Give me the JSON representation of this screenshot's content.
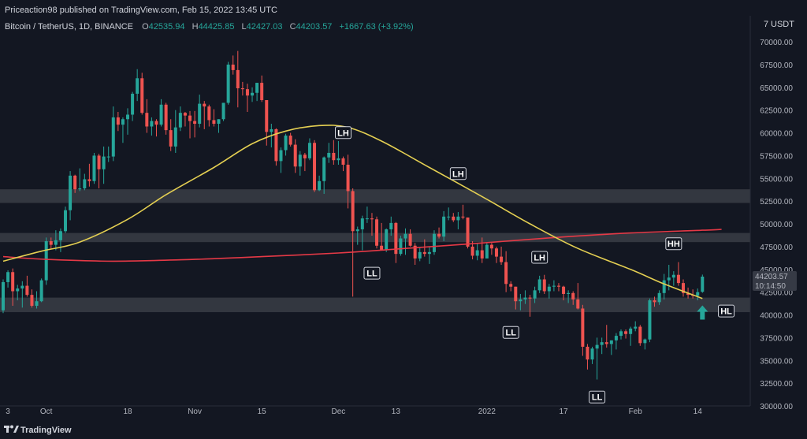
{
  "publisher": {
    "text": "Priceaction98 published on TradingView.com, Feb 15, 2022 13:45 UTC"
  },
  "symbol": {
    "name": "Bitcoin / TetherUS, 1D, BINANCE",
    "ohlc": [
      {
        "k": "O",
        "v": "42535.94"
      },
      {
        "k": "H",
        "v": "44425.85"
      },
      {
        "k": "L",
        "v": "42427.03"
      },
      {
        "k": "C",
        "v": "44203.57"
      }
    ],
    "change": "+1667.63 (+3.92%)"
  },
  "currency_label": "USDT",
  "currency_menu_glyph": "7",
  "footer": {
    "brand": "TradingView",
    "logo_icon": "tradingview-logo-icon"
  },
  "last_price": {
    "value": "44203.57",
    "countdown": "10:14:50",
    "color": "#26a69a"
  },
  "colors": {
    "background": "#131722",
    "up": "#26a69a",
    "down": "#ef5350",
    "ma_fast": "#e4cf52",
    "ma_slow": "#e53946",
    "zone": "#3a3d45",
    "arrow": "#26a69a"
  },
  "chart_data": {
    "type": "candlestick",
    "ylim": [
      30000,
      72000
    ],
    "y_ticks": [
      "30000.00",
      "32500.00",
      "35000.00",
      "37500.00",
      "40000.00",
      "42500.00",
      "45000.00",
      "47500.00",
      "50000.00",
      "52500.00",
      "55000.00",
      "57500.00",
      "60000.00",
      "62500.00",
      "65000.00",
      "67500.00",
      "70000.00"
    ],
    "x_ticks": [
      {
        "label": "3",
        "date": "2021-09-23"
      },
      {
        "label": "Oct",
        "date": "2021-10-01"
      },
      {
        "label": "18",
        "date": "2021-10-18"
      },
      {
        "label": "Nov",
        "date": "2021-11-01"
      },
      {
        "label": "15",
        "date": "2021-11-15"
      },
      {
        "label": "Dec",
        "date": "2021-12-01"
      },
      {
        "label": "13",
        "date": "2021-12-13"
      },
      {
        "label": "2022",
        "date": "2022-01-01"
      },
      {
        "label": "17",
        "date": "2022-01-17"
      },
      {
        "label": "Feb",
        "date": "2022-02-01"
      },
      {
        "label": "14",
        "date": "2022-02-14"
      }
    ],
    "x_range": {
      "start": "2021-09-22",
      "end": "2022-02-24"
    },
    "candles": [
      [
        "2021-09-22",
        40500,
        43900,
        40200,
        43600
      ],
      [
        "2021-09-23",
        43600,
        44900,
        43000,
        44700
      ],
      [
        "2021-09-24",
        44700,
        45100,
        41000,
        42600
      ],
      [
        "2021-09-25",
        42600,
        43300,
        41600,
        42900
      ],
      [
        "2021-09-26",
        42900,
        43700,
        40800,
        43200
      ],
      [
        "2021-09-27",
        43200,
        44300,
        42000,
        42200
      ],
      [
        "2021-09-28",
        42200,
        42800,
        40800,
        41000
      ],
      [
        "2021-09-29",
        41000,
        42600,
        40700,
        41500
      ],
      [
        "2021-09-30",
        41500,
        44000,
        41400,
        43800
      ],
      [
        "2021-10-01",
        43800,
        48500,
        43300,
        48100
      ],
      [
        "2021-10-02",
        48100,
        48500,
        47200,
        47700
      ],
      [
        "2021-10-03",
        47700,
        49300,
        47100,
        48200
      ],
      [
        "2021-10-04",
        48200,
        49500,
        46900,
        49200
      ],
      [
        "2021-10-05",
        49200,
        51900,
        49000,
        51500
      ],
      [
        "2021-10-06",
        51500,
        55800,
        50400,
        55300
      ],
      [
        "2021-10-07",
        55300,
        55400,
        53400,
        53800
      ],
      [
        "2021-10-08",
        53800,
        56100,
        53600,
        53900
      ],
      [
        "2021-10-09",
        53900,
        55500,
        53700,
        54900
      ],
      [
        "2021-10-10",
        54900,
        56600,
        54100,
        54700
      ],
      [
        "2021-10-11",
        54700,
        57800,
        54400,
        57500
      ],
      [
        "2021-10-12",
        57500,
        57700,
        53900,
        56000
      ],
      [
        "2021-10-13",
        56000,
        58500,
        54400,
        57400
      ],
      [
        "2021-10-14",
        57400,
        58500,
        56800,
        57400
      ],
      [
        "2021-10-15",
        57400,
        62900,
        56900,
        61700
      ],
      [
        "2021-10-16",
        61700,
        62300,
        60200,
        60900
      ],
      [
        "2021-10-17",
        60900,
        61700,
        58900,
        61500
      ],
      [
        "2021-10-18",
        61500,
        62700,
        59800,
        62000
      ],
      [
        "2021-10-19",
        62000,
        64500,
        61300,
        64300
      ],
      [
        "2021-10-20",
        64300,
        67000,
        63500,
        66000
      ],
      [
        "2021-10-21",
        66000,
        66600,
        62000,
        62200
      ],
      [
        "2021-10-22",
        62200,
        63700,
        60000,
        60700
      ],
      [
        "2021-10-23",
        60700,
        61700,
        59700,
        61300
      ],
      [
        "2021-10-24",
        61300,
        61500,
        59600,
        60900
      ],
      [
        "2021-10-25",
        60900,
        63700,
        60700,
        63100
      ],
      [
        "2021-10-26",
        63100,
        63300,
        59800,
        60300
      ],
      [
        "2021-10-27",
        60300,
        61500,
        58000,
        58500
      ],
      [
        "2021-10-28",
        58500,
        62500,
        57800,
        60600
      ],
      [
        "2021-10-29",
        60600,
        62900,
        60200,
        62200
      ],
      [
        "2021-10-30",
        62200,
        62300,
        60700,
        61900
      ],
      [
        "2021-10-31",
        61900,
        62400,
        59400,
        61300
      ],
      [
        "2021-11-01",
        61300,
        62400,
        59500,
        61000
      ],
      [
        "2021-11-02",
        61000,
        64200,
        60600,
        63200
      ],
      [
        "2021-11-03",
        63200,
        63500,
        60400,
        62900
      ],
      [
        "2021-11-04",
        62900,
        63100,
        60700,
        61400
      ],
      [
        "2021-11-05",
        61400,
        62600,
        60700,
        61000
      ],
      [
        "2021-11-06",
        61000,
        61500,
        60000,
        61500
      ],
      [
        "2021-11-07",
        61500,
        63300,
        61300,
        63300
      ],
      [
        "2021-11-08",
        63300,
        67800,
        63100,
        67500
      ],
      [
        "2021-11-09",
        67500,
        68500,
        66400,
        66900
      ],
      [
        "2021-11-10",
        66900,
        69000,
        62800,
        64900
      ],
      [
        "2021-11-11",
        64900,
        65600,
        64100,
        64800
      ],
      [
        "2021-11-12",
        64800,
        65400,
        62300,
        64100
      ],
      [
        "2021-11-13",
        64100,
        65000,
        63400,
        64400
      ],
      [
        "2021-11-14",
        64400,
        65500,
        63500,
        65500
      ],
      [
        "2021-11-15",
        65500,
        66300,
        63400,
        63600
      ],
      [
        "2021-11-16",
        63600,
        63600,
        58600,
        60100
      ],
      [
        "2021-11-17",
        60100,
        61000,
        58400,
        60400
      ],
      [
        "2021-11-18",
        60400,
        60500,
        56400,
        56900
      ],
      [
        "2021-11-19",
        56900,
        58400,
        55600,
        58100
      ],
      [
        "2021-11-20",
        58100,
        59900,
        57500,
        59700
      ],
      [
        "2021-11-21",
        59700,
        60000,
        58500,
        58700
      ],
      [
        "2021-11-22",
        58700,
        59300,
        55600,
        56300
      ],
      [
        "2021-11-23",
        56300,
        58000,
        55300,
        57600
      ],
      [
        "2021-11-24",
        57600,
        57800,
        55800,
        57200
      ],
      [
        "2021-11-25",
        57200,
        59400,
        57000,
        58900
      ],
      [
        "2021-11-26",
        58900,
        59200,
        53500,
        53700
      ],
      [
        "2021-11-27",
        53700,
        55300,
        53600,
        54700
      ],
      [
        "2021-11-28",
        54700,
        57400,
        53300,
        57300
      ],
      [
        "2021-11-29",
        57300,
        58900,
        56700,
        57800
      ],
      [
        "2021-11-30",
        57800,
        59200,
        56500,
        57000
      ],
      [
        "2021-12-01",
        57000,
        59100,
        56500,
        57200
      ],
      [
        "2021-12-02",
        57200,
        57400,
        55800,
        56500
      ],
      [
        "2021-12-03",
        56500,
        57600,
        51700,
        53600
      ],
      [
        "2021-12-04",
        53600,
        53900,
        42000,
        49200
      ],
      [
        "2021-12-05",
        49200,
        49700,
        47700,
        49400
      ],
      [
        "2021-12-06",
        49400,
        50900,
        47100,
        50600
      ],
      [
        "2021-12-07",
        50600,
        51900,
        50100,
        50600
      ],
      [
        "2021-12-08",
        50600,
        51200,
        48700,
        50500
      ],
      [
        "2021-12-09",
        50500,
        50800,
        47300,
        47600
      ],
      [
        "2021-12-10",
        47600,
        50100,
        47300,
        47100
      ],
      [
        "2021-12-11",
        47100,
        49500,
        46900,
        49400
      ],
      [
        "2021-12-12",
        49400,
        50800,
        48700,
        50100
      ],
      [
        "2021-12-13",
        50100,
        50200,
        45700,
        46700
      ],
      [
        "2021-12-14",
        46700,
        48700,
        46500,
        48400
      ],
      [
        "2021-12-15",
        48400,
        49500,
        46600,
        48900
      ],
      [
        "2021-12-16",
        48900,
        49400,
        47500,
        47600
      ],
      [
        "2021-12-17",
        47600,
        47900,
        45500,
        46200
      ],
      [
        "2021-12-18",
        46200,
        47400,
        45900,
        46900
      ],
      [
        "2021-12-19",
        46900,
        48300,
        46400,
        46700
      ],
      [
        "2021-12-20",
        46700,
        47500,
        45600,
        46900
      ],
      [
        "2021-12-21",
        46900,
        49300,
        46600,
        48900
      ],
      [
        "2021-12-22",
        48900,
        49600,
        48400,
        48600
      ],
      [
        "2021-12-23",
        48600,
        51400,
        48100,
        50800
      ],
      [
        "2021-12-24",
        50800,
        51800,
        50400,
        50800
      ],
      [
        "2021-12-25",
        50800,
        51200,
        50200,
        50400
      ],
      [
        "2021-12-26",
        50400,
        51300,
        49400,
        50800
      ],
      [
        "2021-12-27",
        50800,
        52100,
        50500,
        50700
      ],
      [
        "2021-12-28",
        50700,
        50700,
        47300,
        47500
      ],
      [
        "2021-12-29",
        47500,
        48100,
        46100,
        46500
      ],
      [
        "2021-12-30",
        46500,
        47900,
        46000,
        47100
      ],
      [
        "2021-12-31",
        47100,
        48500,
        45700,
        46200
      ],
      [
        "2022-01-01",
        46200,
        47900,
        46200,
        47700
      ],
      [
        "2022-01-02",
        47700,
        47900,
        46600,
        47300
      ],
      [
        "2022-01-03",
        47300,
        47500,
        45700,
        46400
      ],
      [
        "2022-01-04",
        46400,
        47500,
        45500,
        45800
      ],
      [
        "2022-01-05",
        45800,
        47000,
        42500,
        43400
      ],
      [
        "2022-01-06",
        43400,
        43700,
        42600,
        43100
      ],
      [
        "2022-01-07",
        43100,
        43100,
        40600,
        41500
      ],
      [
        "2022-01-08",
        41500,
        42300,
        40500,
        41700
      ],
      [
        "2022-01-09",
        41700,
        42700,
        41200,
        41900
      ],
      [
        "2022-01-10",
        41900,
        42200,
        39800,
        41800
      ],
      [
        "2022-01-11",
        41800,
        43100,
        41300,
        42700
      ],
      [
        "2022-01-12",
        42700,
        44300,
        42400,
        43900
      ],
      [
        "2022-01-13",
        43900,
        44400,
        42300,
        42600
      ],
      [
        "2022-01-14",
        42600,
        43400,
        41800,
        43100
      ],
      [
        "2022-01-15",
        43100,
        43800,
        42600,
        43200
      ],
      [
        "2022-01-16",
        43200,
        43500,
        42600,
        43100
      ],
      [
        "2022-01-17",
        43100,
        43200,
        41600,
        42300
      ],
      [
        "2022-01-18",
        42300,
        42700,
        41300,
        42400
      ],
      [
        "2022-01-19",
        42400,
        42600,
        41100,
        41700
      ],
      [
        "2022-01-20",
        41700,
        43500,
        40600,
        40700
      ],
      [
        "2022-01-21",
        40700,
        41100,
        35500,
        36500
      ],
      [
        "2022-01-22",
        36500,
        36800,
        34000,
        35100
      ],
      [
        "2022-01-23",
        35100,
        36500,
        34600,
        36300
      ],
      [
        "2022-01-24",
        36300,
        37500,
        32900,
        36700
      ],
      [
        "2022-01-25",
        36700,
        37500,
        35700,
        37000
      ],
      [
        "2022-01-26",
        37000,
        38900,
        36400,
        36800
      ],
      [
        "2022-01-27",
        36800,
        37200,
        35600,
        37200
      ],
      [
        "2022-01-28",
        37200,
        38000,
        36200,
        37700
      ],
      [
        "2022-01-29",
        37700,
        38400,
        37300,
        38200
      ],
      [
        "2022-01-30",
        38200,
        38400,
        37400,
        37900
      ],
      [
        "2022-01-31",
        37900,
        38700,
        36600,
        38500
      ],
      [
        "2022-02-01",
        38500,
        39300,
        38200,
        38700
      ],
      [
        "2022-02-02",
        38700,
        38900,
        36600,
        36900
      ],
      [
        "2022-02-03",
        36900,
        37400,
        36200,
        37300
      ],
      [
        "2022-02-04",
        37300,
        41800,
        37000,
        41600
      ],
      [
        "2022-02-05",
        41600,
        42000,
        40900,
        41400
      ],
      [
        "2022-02-06",
        41400,
        42700,
        41100,
        42400
      ],
      [
        "2022-02-07",
        42400,
        44500,
        41700,
        43800
      ],
      [
        "2022-02-08",
        43800,
        45500,
        42700,
        44100
      ],
      [
        "2022-02-09",
        44100,
        44800,
        43200,
        44400
      ],
      [
        "2022-02-10",
        44400,
        45800,
        43200,
        43500
      ],
      [
        "2022-02-11",
        43500,
        43900,
        42000,
        42400
      ],
      [
        "2022-02-12",
        42400,
        43000,
        41800,
        42200
      ],
      [
        "2022-02-13",
        42200,
        42800,
        41800,
        42100
      ],
      [
        "2022-02-14",
        42100,
        42900,
        41600,
        42500
      ],
      [
        "2022-02-15",
        42535.94,
        44425.85,
        42427.03,
        44203.57
      ]
    ],
    "ma_fast": [
      [
        "2021-09-22",
        45900
      ],
      [
        "2021-09-30",
        47000
      ],
      [
        "2021-10-08",
        48000
      ],
      [
        "2021-10-18",
        50500
      ],
      [
        "2021-10-26",
        53200
      ],
      [
        "2021-11-05",
        56200
      ],
      [
        "2021-11-13",
        58800
      ],
      [
        "2021-11-20",
        60200
      ],
      [
        "2021-11-27",
        60800
      ],
      [
        "2021-12-03",
        60600
      ],
      [
        "2021-12-10",
        59100
      ],
      [
        "2021-12-20",
        56200
      ],
      [
        "2021-12-31",
        53000
      ],
      [
        "2022-01-10",
        50000
      ],
      [
        "2022-01-20",
        47300
      ],
      [
        "2022-01-31",
        45000
      ],
      [
        "2022-02-07",
        43400
      ],
      [
        "2022-02-15",
        41800
      ]
    ],
    "ma_slow": [
      [
        "2021-09-22",
        46400
      ],
      [
        "2021-10-01",
        46100
      ],
      [
        "2021-10-15",
        45900
      ],
      [
        "2021-11-01",
        46100
      ],
      [
        "2021-11-15",
        46400
      ],
      [
        "2021-12-01",
        46800
      ],
      [
        "2021-12-15",
        47300
      ],
      [
        "2021-12-31",
        47900
      ],
      [
        "2022-01-15",
        48500
      ],
      [
        "2022-01-31",
        49000
      ],
      [
        "2022-02-15",
        49300
      ],
      [
        "2022-02-19",
        49400
      ]
    ],
    "zones": [
      {
        "low": 52300,
        "high": 53800
      },
      {
        "low": 48000,
        "high": 49000
      },
      {
        "low": 40300,
        "high": 41900
      }
    ],
    "annotations": [
      {
        "text": "LH",
        "date": "2021-12-02",
        "price": 59200,
        "anchor": "above"
      },
      {
        "text": "LH",
        "date": "2021-12-26",
        "price": 54700,
        "anchor": "above"
      },
      {
        "text": "LH",
        "date": "2022-01-12",
        "price": 45500,
        "anchor": "above"
      },
      {
        "text": "HH",
        "date": "2022-02-09",
        "price": 47000,
        "anchor": "above"
      },
      {
        "text": "LL",
        "date": "2021-12-08",
        "price": 45400,
        "anchor": "below"
      },
      {
        "text": "LL",
        "date": "2022-01-06",
        "price": 38900,
        "anchor": "below"
      },
      {
        "text": "LL",
        "date": "2022-01-24",
        "price": 31800,
        "anchor": "below"
      },
      {
        "text": "HL",
        "date": "2022-02-18",
        "price": 40600,
        "anchor": "right"
      }
    ],
    "arrow": {
      "date": "2022-02-15",
      "price": 40000,
      "direction": "up"
    }
  }
}
